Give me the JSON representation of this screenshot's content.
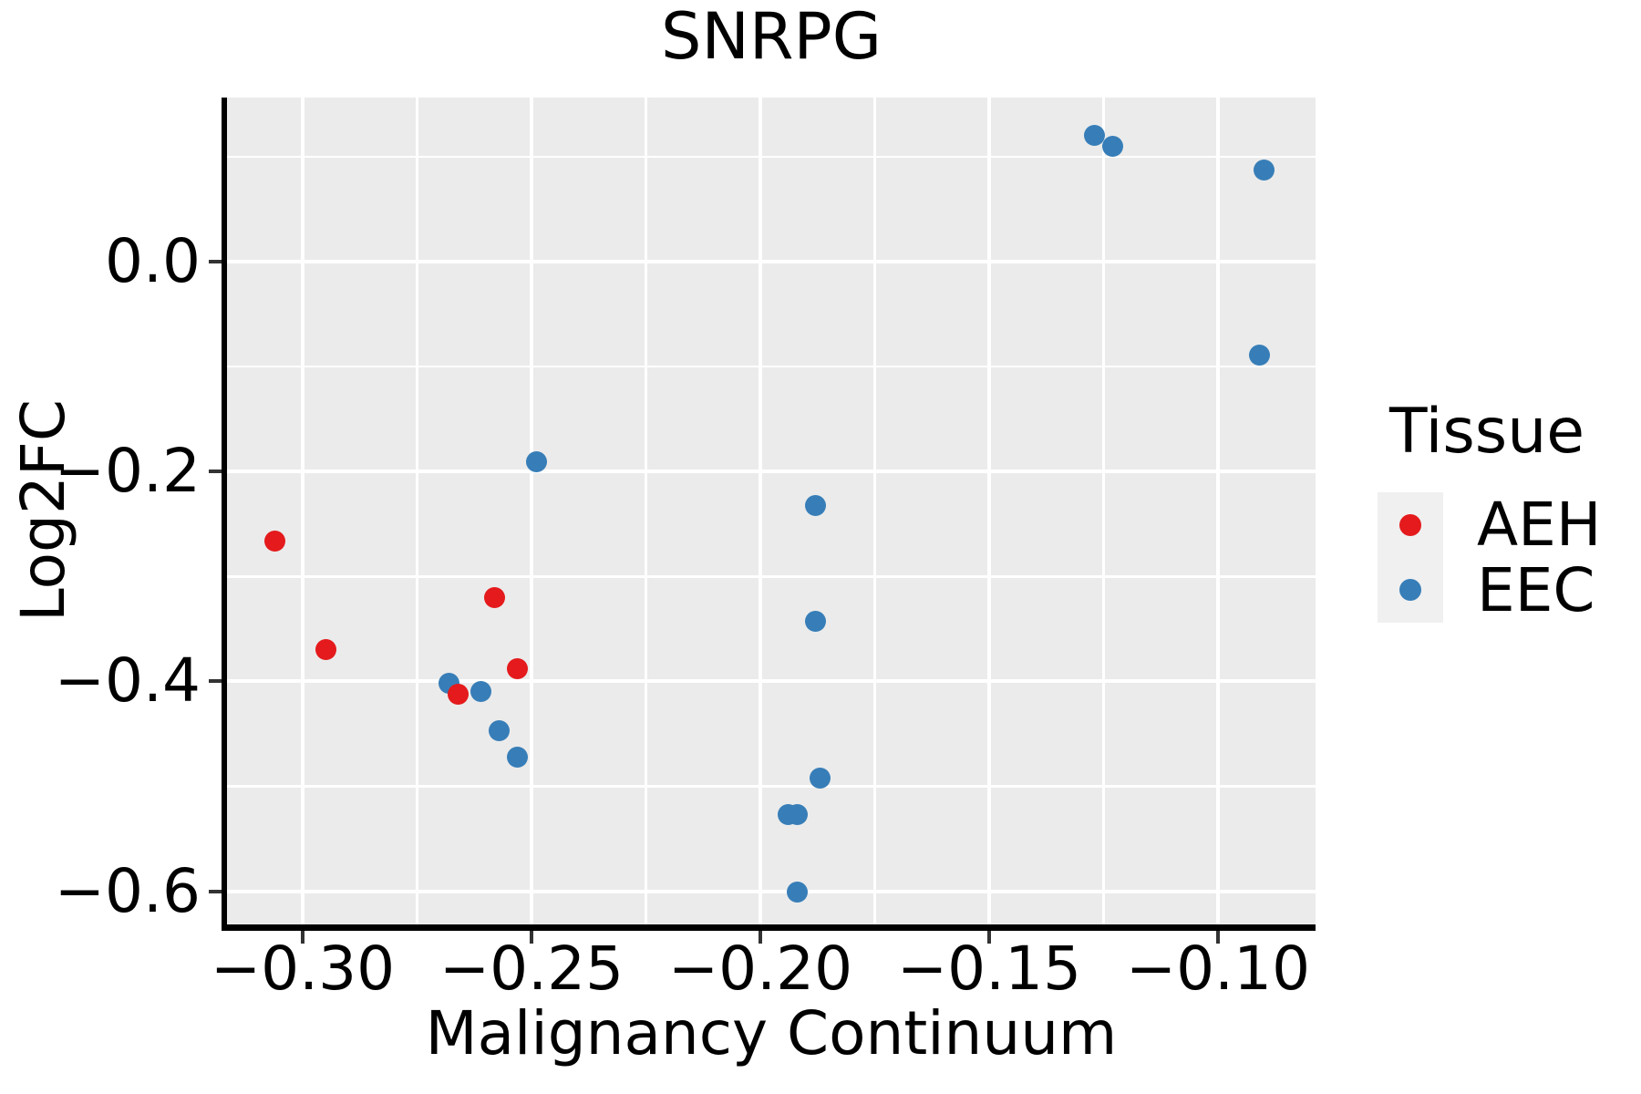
{
  "chart_data": {
    "type": "scatter",
    "title": "SNRPG",
    "xlabel": "Malignancy Continuum",
    "ylabel": "Log2FC",
    "xlim": [
      -0.317,
      -0.079
    ],
    "ylim": [
      -0.638,
      0.156
    ],
    "grid": "on",
    "panel_background": "#ebebeb",
    "gridline_color": "#ffffff",
    "legend_position": "right",
    "legend_title": "Tissue",
    "x_ticks": [
      {
        "value": -0.3,
        "label": "−0.30"
      },
      {
        "value": -0.25,
        "label": "−0.25"
      },
      {
        "value": -0.2,
        "label": "−0.20"
      },
      {
        "value": -0.15,
        "label": "−0.15"
      },
      {
        "value": -0.1,
        "label": "−0.10"
      }
    ],
    "y_ticks": [
      {
        "value": 0.0,
        "label": "0.0"
      },
      {
        "value": -0.2,
        "label": "−0.2"
      },
      {
        "value": -0.4,
        "label": "−0.4"
      },
      {
        "value": -0.6,
        "label": "−0.6"
      }
    ],
    "x_minor_gridlines": [
      -0.275,
      -0.225,
      -0.175,
      -0.125
    ],
    "y_minor_gridlines": [
      0.1,
      -0.1,
      -0.3,
      -0.5
    ],
    "series": [
      {
        "name": "AEH",
        "color": "#e41a1c",
        "points": [
          [
            -0.306,
            -0.266
          ],
          [
            -0.295,
            -0.37
          ],
          [
            -0.258,
            -0.32
          ],
          [
            -0.253,
            -0.388
          ],
          [
            -0.266,
            -0.412
          ]
        ]
      },
      {
        "name": "EEC",
        "color": "#377eb8",
        "points": [
          [
            -0.127,
            0.12
          ],
          [
            -0.123,
            0.11
          ],
          [
            -0.09,
            0.087
          ],
          [
            -0.091,
            -0.089
          ],
          [
            -0.249,
            -0.191
          ],
          [
            -0.188,
            -0.232
          ],
          [
            -0.188,
            -0.343
          ],
          [
            -0.268,
            -0.402
          ],
          [
            -0.261,
            -0.41
          ],
          [
            -0.257,
            -0.447
          ],
          [
            -0.253,
            -0.472
          ],
          [
            -0.187,
            -0.492
          ],
          [
            -0.194,
            -0.527
          ],
          [
            -0.192,
            -0.527
          ],
          [
            -0.192,
            -0.601
          ]
        ]
      }
    ]
  }
}
